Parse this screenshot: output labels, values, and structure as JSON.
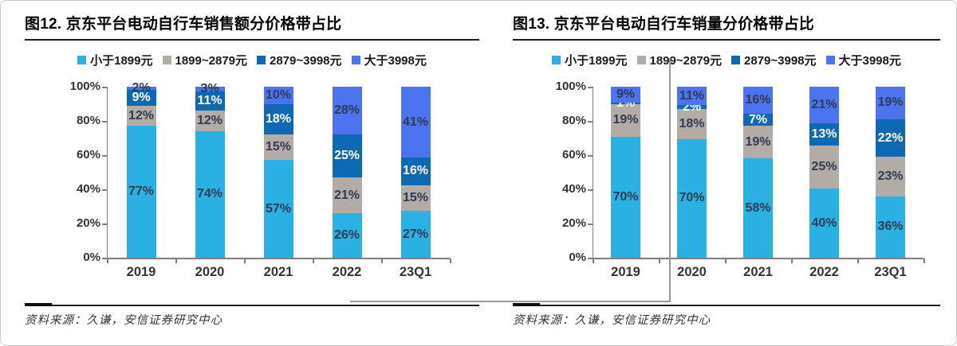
{
  "sources": [
    "资料来源：久谦，安信证券研究中心",
    "资料来源：久谦，安信证券研究中心"
  ],
  "colors": {
    "band_lt1899": "#2BB0E4",
    "band_1899_2879": "#B3ACA6",
    "band_2879_3998": "#0E68B2",
    "band_gt3998": "#4C73F0",
    "label_dark": "#2F3B52",
    "label_light": "#FFFFFF",
    "axis": "#7F7F7F"
  },
  "chart_data": [
    {
      "type": "bar",
      "stacked": true,
      "title": "图12. 京东平台电动自行车销售额分价格带占比",
      "categories": [
        "2019",
        "2020",
        "2021",
        "2022",
        "23Q1"
      ],
      "series": [
        {
          "name": "小于1899元",
          "color": "#2BB0E4",
          "label_color": "#2F3B52",
          "values": [
            77,
            74,
            57,
            26,
            27
          ]
        },
        {
          "name": "1899~2879元",
          "color": "#B3ACA6",
          "label_color": "#2F3B52",
          "values": [
            12,
            12,
            15,
            21,
            15
          ]
        },
        {
          "name": "2879~3998元",
          "color": "#0E68B2",
          "label_color": "#FFFFFF",
          "values": [
            9,
            11,
            18,
            25,
            16
          ]
        },
        {
          "name": "大于3998元",
          "color": "#4C73F0",
          "label_color": "#2F3B52",
          "values": [
            2,
            3,
            10,
            28,
            41
          ]
        }
      ],
      "value_label_suffix": "%",
      "y_ticks": [
        "0%",
        "20%",
        "40%",
        "60%",
        "80%",
        "100%"
      ],
      "ylim": [
        0,
        100
      ],
      "legend_position": "top",
      "grid": false
    },
    {
      "type": "bar",
      "stacked": true,
      "title": "图13. 京东平台电动自行车销量分价格带占比",
      "categories": [
        "2019",
        "2020",
        "2021",
        "2022",
        "23Q1"
      ],
      "series": [
        {
          "name": "小于1899元",
          "color": "#2BB0E4",
          "label_color": "#2F3B52",
          "values": [
            70,
            70,
            58,
            40,
            36
          ]
        },
        {
          "name": "1899~2879元",
          "color": "#B3ACA6",
          "label_color": "#2F3B52",
          "values": [
            19,
            18,
            19,
            25,
            23
          ]
        },
        {
          "name": "2879~3998元",
          "color": "#0E68B2",
          "label_color": "#FFFFFF",
          "values": [
            1,
            2,
            7,
            13,
            22
          ]
        },
        {
          "name": "大于3998元",
          "color": "#4C73F0",
          "label_color": "#2F3B52",
          "values": [
            9,
            11,
            16,
            21,
            19
          ]
        }
      ],
      "value_label_suffix": "%",
      "y_ticks": [
        "0%",
        "20%",
        "40%",
        "60%",
        "80%",
        "100%"
      ],
      "ylim": [
        0,
        100
      ],
      "legend_position": "top",
      "grid": false
    }
  ]
}
